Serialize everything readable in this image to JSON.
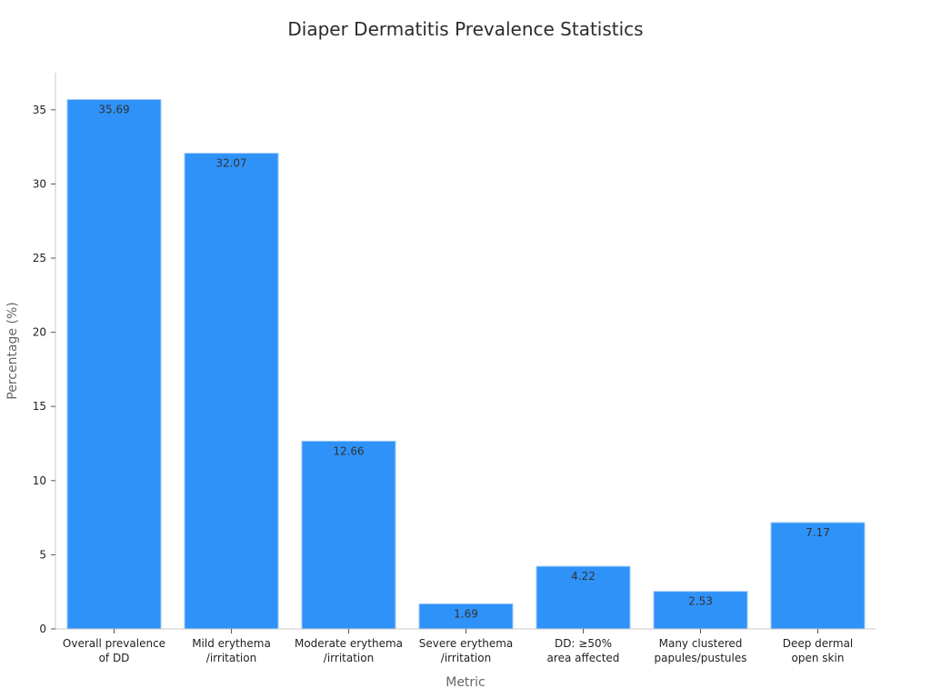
{
  "chart_data": {
    "type": "bar",
    "title": "Diaper Dermatitis Prevalence Statistics",
    "xlabel": "Metric",
    "ylabel": "Percentage (%)",
    "categories": [
      [
        "Overall prevalence",
        "of DD"
      ],
      [
        "Mild erythema",
        "/irritation"
      ],
      [
        "Moderate erythema",
        "/irritation"
      ],
      [
        "Severe erythema",
        "/irritation"
      ],
      [
        "DD: ≥50%",
        "area affected"
      ],
      [
        "Many clustered",
        "papules/pustules"
      ],
      [
        "Deep dermal",
        "open skin"
      ]
    ],
    "values": [
      35.69,
      32.07,
      12.66,
      1.69,
      4.22,
      2.53,
      7.17
    ],
    "value_labels": [
      "35.69",
      "32.07",
      "12.66",
      "1.69",
      "4.22",
      "2.53",
      "7.17"
    ],
    "ylim": [
      0,
      37.5
    ],
    "yticks": [
      0,
      5,
      10,
      15,
      20,
      25,
      30,
      35
    ],
    "grid": false,
    "legend": "none",
    "colors": {
      "bar": "#2f92f8",
      "bar_edge": "#9ccaf8",
      "axis": "#c8c8c8",
      "tick_label": "#222222",
      "axis_label": "#666666",
      "value_label": "#333333"
    }
  }
}
